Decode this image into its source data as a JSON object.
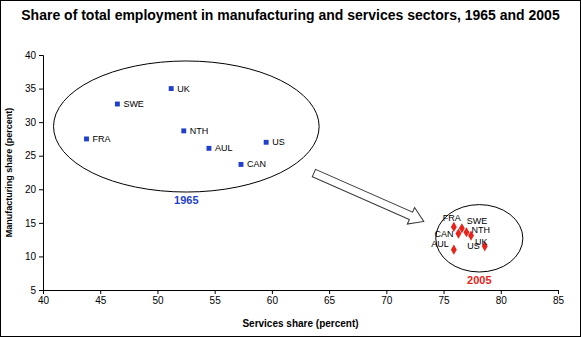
{
  "chart_data": {
    "type": "scatter",
    "title": "Share of total employment in manufacturing and services sectors, 1965 and 2005",
    "x_label": "Services share (percent)",
    "y_label": "Manufacturing share (percent)",
    "xlim": [
      40,
      85
    ],
    "xticks": [
      40,
      45,
      50,
      55,
      60,
      65,
      70,
      75,
      80,
      85
    ],
    "ylim": [
      5,
      40
    ],
    "yticks": [
      5,
      10,
      15,
      20,
      25,
      30,
      35,
      40
    ],
    "grid": false,
    "series": [
      {
        "name": "1965",
        "color": "#1f3fcc",
        "marker": "square",
        "labels": [
          "UK",
          "SWE",
          "FRA",
          "NTH",
          "AUL",
          "US",
          "CAN"
        ],
        "x": [
          51.2,
          46.5,
          43.8,
          52.3,
          54.5,
          59.5,
          57.3
        ],
        "values": [
          35.0,
          32.7,
          27.5,
          28.7,
          26.1,
          27.0,
          23.7
        ]
      },
      {
        "name": "2005",
        "color": "#e8231a",
        "marker": "diamond",
        "labels": [
          "FRA",
          "SWE",
          "CAN",
          "NTH",
          "UK",
          "AUL",
          "US"
        ],
        "x": [
          75.9,
          76.6,
          76.3,
          77.0,
          77.4,
          75.9,
          78.6
        ],
        "values": [
          14.4,
          14.2,
          13.4,
          13.6,
          13.1,
          11.0,
          11.5
        ]
      }
    ]
  }
}
